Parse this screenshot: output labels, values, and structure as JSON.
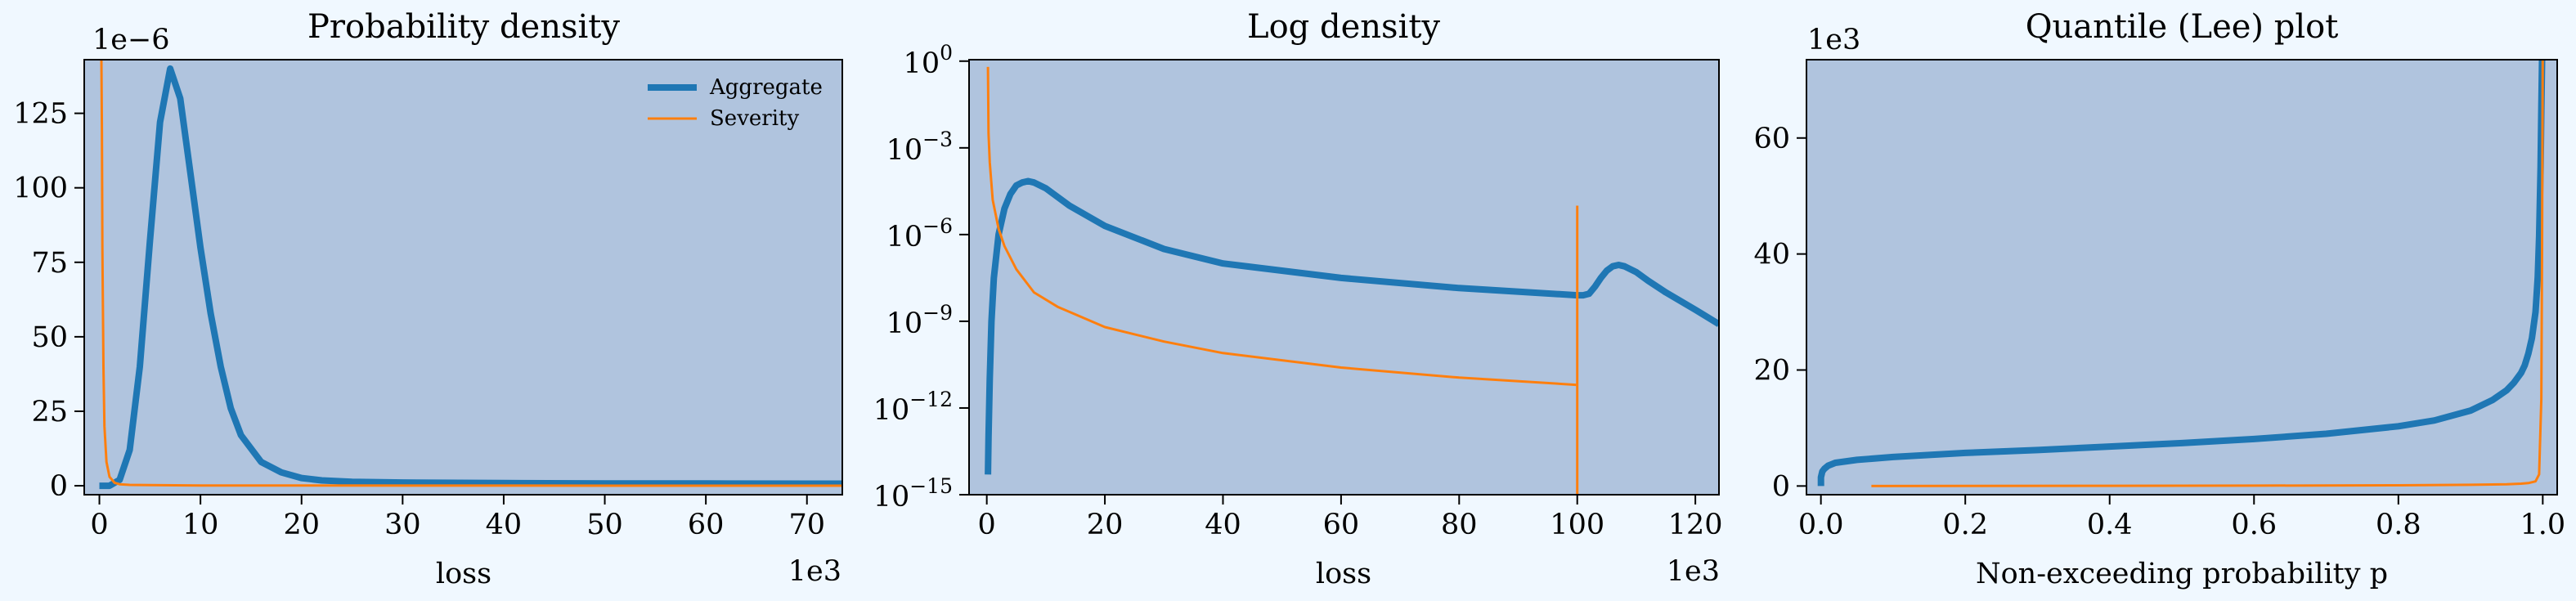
{
  "colors": {
    "background": "#f0f8ff",
    "axes_face": "#b0c4de",
    "aggregate": "#1f77b4",
    "severity": "#ff7f0e"
  },
  "chart_data": [
    {
      "type": "line",
      "title": "Probability density",
      "xlabel": "loss",
      "ylabel": "",
      "x_offset_text": "1e3",
      "y_offset_text": "1e−6",
      "xlim": [
        -1.5,
        73.5
      ],
      "ylim": [
        -3,
        143
      ],
      "xticks": [
        0,
        10,
        20,
        30,
        40,
        50,
        60,
        70
      ],
      "xtick_labels": [
        "0",
        "10",
        "20",
        "30",
        "40",
        "50",
        "60",
        "70"
      ],
      "yticks": [
        0,
        25,
        50,
        75,
        100,
        125
      ],
      "ytick_labels": [
        "0",
        "25",
        "50",
        "75",
        "100",
        "125"
      ],
      "legend": {
        "position": "top-right",
        "entries": [
          "Aggregate",
          "Severity"
        ]
      },
      "series": [
        {
          "name": "Aggregate",
          "x": [
            0,
            1,
            2,
            3,
            4,
            5,
            6,
            7,
            8,
            9,
            10,
            11,
            12,
            13,
            14,
            16,
            18,
            20,
            22,
            25,
            30,
            40,
            50,
            60,
            70,
            73.5
          ],
          "y": [
            0,
            0,
            2,
            12,
            40,
            82,
            122,
            140,
            130,
            105,
            80,
            58,
            40,
            26,
            17,
            8,
            4.5,
            2.6,
            1.8,
            1.3,
            1.1,
            0.9,
            0.8,
            0.75,
            0.7,
            0.7
          ]
        },
        {
          "name": "Severity",
          "x": [
            0.2,
            0.25,
            0.3,
            0.4,
            0.5,
            0.7,
            1,
            1.5,
            2,
            3,
            5,
            10,
            20,
            40,
            60,
            73.5
          ],
          "y": [
            143,
            120,
            80,
            40,
            20,
            8,
            3,
            1,
            0.5,
            0.3,
            0.2,
            0.1,
            0.08,
            0.05,
            0.03,
            0.02
          ]
        }
      ]
    },
    {
      "type": "line",
      "title": "Log density",
      "xlabel": "loss",
      "ylabel": "",
      "x_offset_text": "1e3",
      "xlim": [
        -3,
        124
      ],
      "ylim_log10": [
        -15,
        0.05
      ],
      "xticks": [
        0,
        20,
        40,
        60,
        80,
        100,
        120
      ],
      "xtick_labels": [
        "0",
        "20",
        "40",
        "60",
        "80",
        "100",
        "120"
      ],
      "yticks_log10": [
        0,
        -3,
        -6,
        -9,
        -12,
        -15
      ],
      "ytick_labels": [
        {
          "base": "10",
          "exp": "0"
        },
        {
          "base": "10",
          "exp": "−3"
        },
        {
          "base": "10",
          "exp": "−6"
        },
        {
          "base": "10",
          "exp": "−9"
        },
        {
          "base": "10",
          "exp": "−12"
        },
        {
          "base": "10",
          "exp": "−15"
        }
      ],
      "series": [
        {
          "name": "Aggregate",
          "x": [
            0.2,
            0.3,
            0.5,
            0.8,
            1.2,
            2,
            3,
            4,
            5,
            6,
            7,
            8,
            10,
            14,
            20,
            30,
            40,
            60,
            80,
            100,
            101,
            102,
            103,
            104,
            105,
            106,
            107,
            108,
            110,
            112,
            115,
            120,
            124
          ],
          "y_log10": [
            -14.3,
            -13,
            -11,
            -9,
            -7.5,
            -6,
            -5.1,
            -4.6,
            -4.3,
            -4.2,
            -4.15,
            -4.2,
            -4.4,
            -5,
            -5.7,
            -6.5,
            -7,
            -7.5,
            -7.85,
            -8.1,
            -8.1,
            -8.05,
            -7.8,
            -7.5,
            -7.25,
            -7.1,
            -7.05,
            -7.1,
            -7.3,
            -7.6,
            -8,
            -8.6,
            -9.1
          ]
        },
        {
          "name": "Severity",
          "x": [
            0.2,
            0.3,
            0.5,
            1,
            2,
            3,
            5,
            8,
            12,
            20,
            30,
            40,
            60,
            80,
            100
          ],
          "y_log10": [
            -0.2,
            -2.5,
            -3.5,
            -4.8,
            -5.8,
            -6.4,
            -7.2,
            -8.0,
            -8.5,
            -9.2,
            -9.7,
            -10.1,
            -10.6,
            -10.95,
            -11.2
          ]
        },
        {
          "name": "Severity",
          "x": [
            100,
            100
          ],
          "y_log10": [
            -15,
            -5
          ]
        }
      ]
    },
    {
      "type": "line",
      "title": "Quantile (Lee) plot",
      "xlabel": "Non-exceeding probability p",
      "ylabel": "",
      "y_offset_text": "1e3",
      "xlim": [
        -0.02,
        1.02
      ],
      "ylim": [
        -1.5,
        73.5
      ],
      "xticks": [
        0,
        0.2,
        0.4,
        0.6,
        0.8,
        1.0
      ],
      "xtick_labels": [
        "0.0",
        "0.2",
        "0.4",
        "0.6",
        "0.8",
        "1.0"
      ],
      "yticks": [
        0,
        20,
        40,
        60
      ],
      "ytick_labels": [
        "0",
        "20",
        "40",
        "60"
      ],
      "series": [
        {
          "name": "Aggregate",
          "x": [
            0.0,
            0.0,
            0.002,
            0.005,
            0.01,
            0.02,
            0.05,
            0.1,
            0.2,
            0.3,
            0.4,
            0.5,
            0.6,
            0.7,
            0.8,
            0.85,
            0.9,
            0.93,
            0.95,
            0.96,
            0.97,
            0.975,
            0.98,
            0.985,
            0.99,
            0.993,
            0.995,
            0.997,
            0.998,
            0.999
          ],
          "y": [
            0,
            1.5,
            2.5,
            3.0,
            3.5,
            4.0,
            4.5,
            5.0,
            5.7,
            6.2,
            6.8,
            7.4,
            8.1,
            9.0,
            10.3,
            11.3,
            13.0,
            14.8,
            16.5,
            17.8,
            19.5,
            20.8,
            22.8,
            25.5,
            30,
            36,
            43,
            55,
            65,
            73.5
          ]
        },
        {
          "name": "Severity",
          "x": [
            0.07,
            0.2,
            0.4,
            0.6,
            0.8,
            0.9,
            0.95,
            0.97,
            0.98,
            0.99,
            0.995,
            0.998,
            0.999,
            1.0
          ],
          "y": [
            0,
            0.02,
            0.04,
            0.07,
            0.12,
            0.2,
            0.3,
            0.4,
            0.5,
            0.8,
            2,
            15,
            40,
            73.5
          ]
        }
      ]
    }
  ]
}
